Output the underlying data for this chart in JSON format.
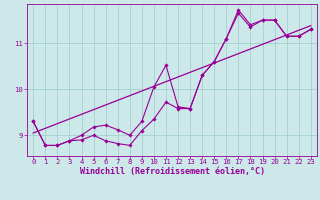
{
  "xlabel": "Windchill (Refroidissement éolien,°C)",
  "background_color": "#cce8e8",
  "line_color": "#990099",
  "grid_color": "#99cccc",
  "x_ticks": [
    0,
    1,
    2,
    3,
    4,
    5,
    6,
    7,
    8,
    9,
    10,
    11,
    12,
    13,
    14,
    15,
    16,
    17,
    18,
    19,
    20,
    21,
    22,
    23
  ],
  "y_ticks": [
    9,
    10,
    11
  ],
  "ylim": [
    8.55,
    11.85
  ],
  "xlim": [
    -0.5,
    23.5
  ],
  "series1_x": [
    0,
    1,
    2,
    3,
    4,
    5,
    6,
    7,
    8,
    9,
    10,
    11,
    12,
    13,
    14,
    15,
    16,
    17,
    18,
    19,
    20,
    21,
    22,
    23
  ],
  "series1_y": [
    9.3,
    8.78,
    8.78,
    8.88,
    8.9,
    9.0,
    8.88,
    8.82,
    8.78,
    9.1,
    9.35,
    9.72,
    9.58,
    9.58,
    10.3,
    10.6,
    11.1,
    11.65,
    11.35,
    11.5,
    11.5,
    11.15,
    11.15,
    11.3
  ],
  "series2_x": [
    0,
    1,
    2,
    3,
    4,
    5,
    6,
    7,
    8,
    9,
    10,
    11,
    12,
    13,
    14,
    15,
    16,
    17,
    18,
    19,
    20,
    21,
    22,
    23
  ],
  "series2_y": [
    9.3,
    8.78,
    8.78,
    8.88,
    9.0,
    9.18,
    9.22,
    9.12,
    9.0,
    9.3,
    10.05,
    10.52,
    9.62,
    9.58,
    10.3,
    10.6,
    11.1,
    11.72,
    11.4,
    11.5,
    11.5,
    11.15,
    11.15,
    11.3
  ],
  "series3_x": [
    0,
    23
  ],
  "series3_y": [
    9.05,
    11.38
  ],
  "tick_fontsize": 5.2,
  "xlabel_fontsize": 6.0
}
